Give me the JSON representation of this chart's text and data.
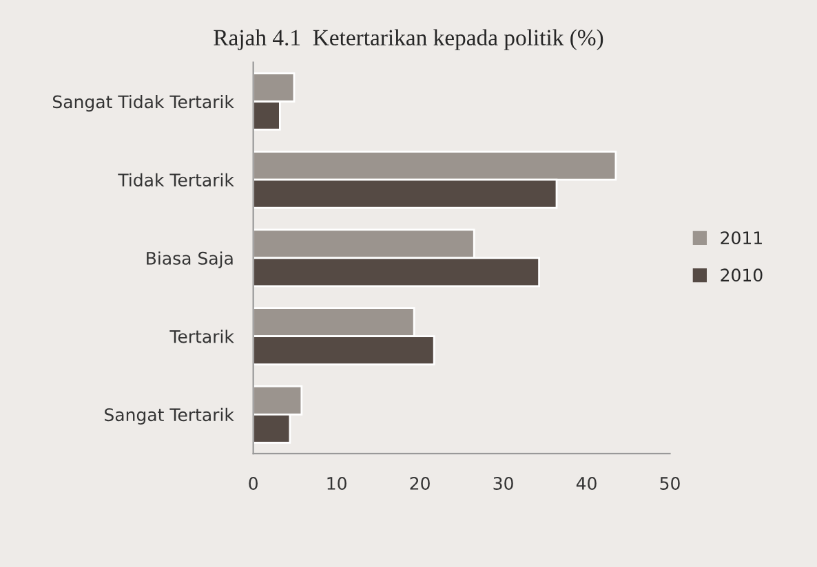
{
  "chart_data": {
    "type": "bar",
    "orientation": "horizontal",
    "title": "Rajah 4.1  Ketertarikan kepada politik (%)",
    "categories": [
      "Sangat Tidak Tertarik",
      "Tidak Tertarik",
      "Biasa Saja",
      "Tertarik",
      "Sangat Tertarik"
    ],
    "series": [
      {
        "name": "2011",
        "color": "#9b948e",
        "values": [
          4.9,
          43.5,
          26.5,
          19.3,
          5.8
        ]
      },
      {
        "name": "2010",
        "color": "#554a44",
        "values": [
          3.2,
          36.4,
          34.3,
          21.7,
          4.4
        ]
      }
    ],
    "xlim": [
      0,
      50
    ],
    "xticks": [
      0,
      10,
      20,
      30,
      40,
      50
    ],
    "grid": false,
    "legend": "right"
  }
}
